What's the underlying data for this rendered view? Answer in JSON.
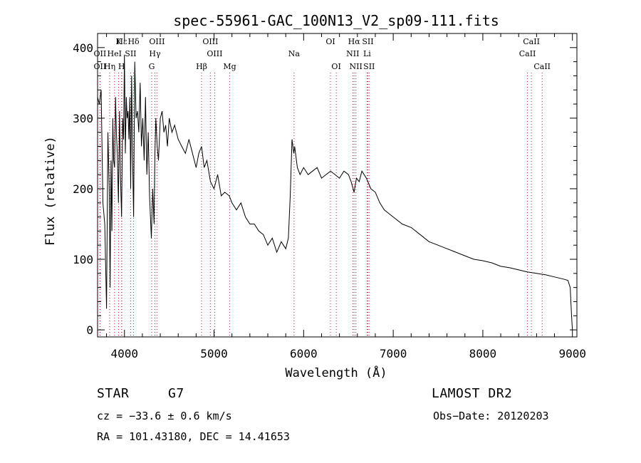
{
  "chart_data": {
    "type": "line",
    "title": "spec-55961-GAC_100N13_V2_sp09-111.fits",
    "xlabel": "Wavelength (Å)",
    "ylabel": "Flux (relative)",
    "xlim": [
      3700,
      9050
    ],
    "ylim": [
      -10,
      420
    ],
    "xticks": [
      4000,
      5000,
      6000,
      7000,
      8000,
      9000
    ],
    "yticks": [
      0,
      100,
      200,
      300,
      400
    ],
    "grid": false,
    "series": [
      {
        "x": [
          3700,
          3720,
          3740,
          3760,
          3780,
          3800,
          3815,
          3830,
          3840,
          3850,
          3860,
          3870,
          3880,
          3890,
          3900,
          3910,
          3920,
          3933,
          3945,
          3955,
          3968,
          3980,
          3990,
          4000,
          4010,
          4020,
          4030,
          4040,
          4050,
          4060,
          4070,
          4080,
          4090,
          4102,
          4115,
          4130,
          4145,
          4160,
          4175,
          4190,
          4205,
          4220,
          4235,
          4250,
          4265,
          4280,
          4300,
          4315,
          4330,
          4340,
          4350,
          4365,
          4380,
          4400,
          4420,
          4440,
          4460,
          4480,
          4500,
          4530,
          4560,
          4600,
          4640,
          4680,
          4720,
          4760,
          4800,
          4830,
          4861,
          4890,
          4920,
          4960,
          5000,
          5040,
          5080,
          5120,
          5170,
          5200,
          5250,
          5300,
          5350,
          5400,
          5450,
          5500,
          5550,
          5600,
          5650,
          5700,
          5750,
          5800,
          5830,
          5850,
          5870,
          5890,
          5900,
          5930,
          5960,
          6000,
          6050,
          6100,
          6150,
          6200,
          6250,
          6300,
          6350,
          6400,
          6450,
          6500,
          6530,
          6563,
          6590,
          6620,
          6650,
          6700,
          6750,
          6800,
          6850,
          6900,
          6950,
          7000,
          7100,
          7200,
          7300,
          7400,
          7500,
          7600,
          7700,
          7800,
          7900,
          8000,
          8100,
          8200,
          8300,
          8400,
          8500,
          8600,
          8700,
          8800,
          8900,
          8950,
          8975,
          8990,
          9000
        ],
        "y": [
          330,
          320,
          340,
          180,
          150,
          30,
          280,
          200,
          60,
          240,
          140,
          300,
          240,
          230,
          330,
          280,
          250,
          180,
          310,
          220,
          160,
          300,
          270,
          390,
          250,
          330,
          300,
          310,
          270,
          330,
          200,
          360,
          250,
          160,
          380,
          300,
          310,
          280,
          350,
          260,
          300,
          240,
          330,
          220,
          280,
          190,
          130,
          200,
          150,
          250,
          300,
          260,
          240,
          300,
          310,
          280,
          290,
          260,
          300,
          280,
          290,
          270,
          260,
          250,
          270,
          250,
          230,
          250,
          260,
          230,
          240,
          210,
          200,
          220,
          190,
          195,
          190,
          180,
          170,
          180,
          160,
          150,
          150,
          140,
          135,
          120,
          130,
          110,
          125,
          115,
          130,
          190,
          270,
          250,
          260,
          230,
          220,
          230,
          220,
          225,
          230,
          215,
          220,
          225,
          220,
          215,
          225,
          220,
          210,
          195,
          215,
          210,
          225,
          215,
          200,
          195,
          180,
          170,
          165,
          160,
          150,
          145,
          135,
          125,
          120,
          115,
          110,
          105,
          100,
          98,
          95,
          90,
          88,
          85,
          82,
          80,
          78,
          75,
          72,
          70,
          60,
          20,
          0
        ]
      }
    ],
    "lines": [
      {
        "label": "Hε",
        "x": 3970,
        "row": 0
      },
      {
        "label": "K",
        "x": 3934,
        "row": 0
      },
      {
        "label": "Hδ",
        "x": 4102,
        "row": 0
      },
      {
        "label": "OIII",
        "x": 4363,
        "row": 0
      },
      {
        "label": "OIII",
        "x": 4959,
        "row": 0
      },
      {
        "label": "OI",
        "x": 6300,
        "row": 0
      },
      {
        "label": "Hα",
        "x": 6563,
        "row": 0
      },
      {
        "label": "SII",
        "x": 6717,
        "row": 0
      },
      {
        "label": "CaII",
        "x": 8542,
        "row": 0
      },
      {
        "label": "OII",
        "x": 3727,
        "row": 1
      },
      {
        "label": "HeI",
        "x": 3889,
        "row": 1
      },
      {
        "label": "SII",
        "x": 4069,
        "row": 1
      },
      {
        "label": "Hγ",
        "x": 4340,
        "row": 1
      },
      {
        "label": "OIII",
        "x": 5007,
        "row": 1
      },
      {
        "label": "Na",
        "x": 5893,
        "row": 1
      },
      {
        "label": "NII",
        "x": 6548,
        "row": 1
      },
      {
        "label": "Li",
        "x": 6708,
        "row": 1
      },
      {
        "label": "CaII",
        "x": 8498,
        "row": 1
      },
      {
        "label": "OII",
        "x": 3727,
        "row": 2
      },
      {
        "label": "Hη",
        "x": 3835,
        "row": 2
      },
      {
        "label": "H",
        "x": 3968,
        "row": 2
      },
      {
        "label": "G",
        "x": 4304,
        "row": 2
      },
      {
        "label": "Hβ",
        "x": 4861,
        "row": 2
      },
      {
        "label": "Mg",
        "x": 5175,
        "row": 2
      },
      {
        "label": "OI",
        "x": 6364,
        "row": 2
      },
      {
        "label": "NII",
        "x": 6583,
        "row": 2
      },
      {
        "label": "SII",
        "x": 6731,
        "row": 2
      },
      {
        "label": "CaII",
        "x": 8662,
        "row": 2
      }
    ]
  },
  "info": {
    "object_type": "STAR",
    "subclass": "G7",
    "survey": "LAMOST DR2",
    "cz": "cz = −33.6 ± 0.6 km/s",
    "obs_date": "Obs−Date: 20120203",
    "coords": "RA = 101.43180, DEC =  14.41653"
  },
  "colors": {
    "line": "#000000",
    "marker": "#c8102e",
    "frame": "#000000"
  }
}
